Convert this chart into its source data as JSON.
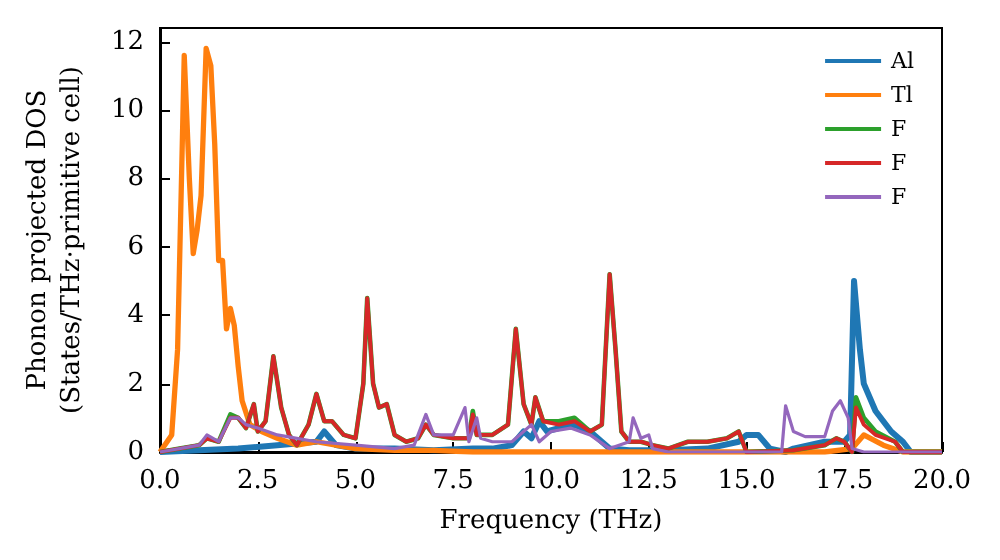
{
  "chart_data": {
    "type": "line",
    "xlabel": "Frequency (THz)",
    "ylabel": "Phonon projected DOS\n(States/THz·primitive cell)",
    "xlim": [
      0,
      20
    ],
    "ylim": [
      0,
      12.4
    ],
    "xticks": [
      {
        "value": 0,
        "label": "0.0"
      },
      {
        "value": 2.5,
        "label": "2.5"
      },
      {
        "value": 5,
        "label": "5.0"
      },
      {
        "value": 7.5,
        "label": "7.5"
      },
      {
        "value": 10,
        "label": "10.0"
      },
      {
        "value": 12.5,
        "label": "12.5"
      },
      {
        "value": 15,
        "label": "15.0"
      },
      {
        "value": 17.5,
        "label": "17.5"
      },
      {
        "value": 20,
        "label": "20.0"
      }
    ],
    "yticks": [
      0,
      2,
      4,
      6,
      8,
      10,
      12
    ],
    "grid": false,
    "legend": "top right",
    "marker": "none",
    "line_style": "solid",
    "series": [
      {
        "name": "Al",
        "color": "#1f77b4",
        "x": [
          0,
          1,
          2,
          3,
          4,
          4.2,
          4.5,
          5,
          6,
          7,
          8,
          8.5,
          9,
          9.3,
          9.5,
          9.7,
          9.9,
          10.2,
          10.6,
          11,
          11.3,
          11.5,
          12,
          13,
          14,
          14.8,
          15,
          15.3,
          15.6,
          16,
          16.2,
          17,
          17.5,
          17.65,
          17.75,
          17.9,
          18,
          18.3,
          18.7,
          19,
          19.2,
          20
        ],
        "values": [
          0,
          0.05,
          0.1,
          0.2,
          0.3,
          0.6,
          0.2,
          0.1,
          0.1,
          0.05,
          0.1,
          0.1,
          0.2,
          0.6,
          0.4,
          0.9,
          0.6,
          0.7,
          0.8,
          0.6,
          0.3,
          0.1,
          0.05,
          0.05,
          0.1,
          0.3,
          0.5,
          0.5,
          0.1,
          0,
          0.1,
          0.3,
          0.3,
          0.5,
          5.0,
          3.0,
          2.0,
          1.2,
          0.6,
          0.3,
          0,
          0
        ]
      },
      {
        "name": "Tl",
        "color": "#ff7f0e",
        "x": [
          0,
          0.3,
          0.45,
          0.55,
          0.62,
          0.75,
          0.85,
          0.95,
          1.05,
          1.18,
          1.3,
          1.4,
          1.5,
          1.6,
          1.7,
          1.8,
          1.9,
          2.0,
          2.1,
          2.3,
          2.6,
          3.0,
          3.5,
          4,
          4.5,
          5,
          6,
          7,
          8,
          17,
          17.7,
          18,
          18.5,
          19,
          20
        ],
        "values": [
          0,
          0.5,
          3,
          8,
          11.6,
          8,
          5.8,
          6.5,
          7.5,
          11.8,
          11.3,
          9,
          5.6,
          5.6,
          3.6,
          4.2,
          3.7,
          2.5,
          1.5,
          0.8,
          0.6,
          0.4,
          0.2,
          0.3,
          0.2,
          0.1,
          0.05,
          0.05,
          0,
          0,
          0.1,
          0.5,
          0.2,
          0,
          0
        ]
      },
      {
        "name": "F",
        "color": "#2ca02c",
        "x": [
          0,
          0.5,
          1.0,
          1.2,
          1.5,
          1.8,
          2.0,
          2.2,
          2.4,
          2.5,
          2.7,
          2.9,
          3.1,
          3.3,
          3.5,
          3.8,
          4.0,
          4.2,
          4.4,
          4.7,
          5.0,
          5.2,
          5.3,
          5.45,
          5.6,
          5.8,
          6.0,
          6.3,
          6.6,
          6.8,
          7.0,
          7.5,
          7.9,
          8.0,
          8.1,
          8.5,
          8.9,
          9.1,
          9.3,
          9.5,
          9.6,
          9.8,
          10.2,
          10.6,
          11.0,
          11.3,
          11.5,
          11.65,
          11.8,
          12.0,
          12.3,
          12.6,
          13.0,
          13.5,
          14,
          14.5,
          14.8,
          15.0,
          16.2,
          17,
          17.3,
          17.5,
          17.7,
          17.8,
          18.0,
          18.3,
          18.8,
          19,
          20
        ],
        "values": [
          0,
          0.1,
          0.2,
          0.4,
          0.3,
          1.1,
          1.0,
          0.7,
          1.4,
          0.6,
          0.9,
          2.8,
          1.3,
          0.5,
          0.2,
          0.8,
          1.7,
          0.9,
          0.9,
          0.5,
          0.4,
          2.0,
          4.5,
          2.0,
          1.3,
          1.4,
          0.5,
          0.3,
          0.4,
          0.8,
          0.5,
          0.4,
          0.4,
          1.2,
          0.5,
          0.5,
          0.8,
          3.6,
          1.4,
          0.8,
          1.6,
          0.9,
          0.9,
          1.0,
          0.6,
          0.8,
          5.2,
          3.0,
          0.6,
          0.3,
          0.3,
          0.2,
          0.1,
          0.3,
          0.3,
          0.4,
          0.6,
          0,
          0.05,
          0.2,
          0.4,
          0.3,
          0,
          1.6,
          1.0,
          0.6,
          0.3,
          0,
          0
        ]
      },
      {
        "name": "F",
        "color": "#d62728",
        "x": [
          0,
          0.5,
          1.0,
          1.2,
          1.5,
          1.8,
          2.0,
          2.2,
          2.4,
          2.5,
          2.7,
          2.9,
          3.1,
          3.3,
          3.5,
          3.8,
          4.0,
          4.2,
          4.4,
          4.7,
          5.0,
          5.2,
          5.3,
          5.45,
          5.6,
          5.8,
          6.0,
          6.3,
          6.6,
          6.8,
          7.0,
          7.5,
          7.9,
          8.0,
          8.1,
          8.5,
          8.9,
          9.1,
          9.3,
          9.5,
          9.6,
          9.8,
          10.2,
          10.6,
          11.0,
          11.3,
          11.5,
          11.65,
          11.8,
          12.0,
          12.3,
          12.6,
          13.0,
          13.5,
          14,
          14.5,
          14.8,
          15.0,
          16.2,
          17,
          17.3,
          17.5,
          17.7,
          17.8,
          18.0,
          18.3,
          18.8,
          19,
          20
        ],
        "values": [
          0,
          0.1,
          0.2,
          0.4,
          0.3,
          1.0,
          1.0,
          0.7,
          1.4,
          0.6,
          0.9,
          2.8,
          1.3,
          0.5,
          0.2,
          0.8,
          1.7,
          0.9,
          0.9,
          0.5,
          0.4,
          2.0,
          4.5,
          2.0,
          1.3,
          1.4,
          0.5,
          0.3,
          0.4,
          0.8,
          0.5,
          0.4,
          0.4,
          1.1,
          0.5,
          0.5,
          0.8,
          3.6,
          1.4,
          0.8,
          1.6,
          0.9,
          0.8,
          0.9,
          0.6,
          0.8,
          5.2,
          3.0,
          0.6,
          0.3,
          0.3,
          0.2,
          0.1,
          0.3,
          0.3,
          0.4,
          0.6,
          0,
          0.05,
          0.2,
          0.4,
          0.3,
          0,
          1.3,
          0.8,
          0.5,
          0.3,
          0,
          0
        ]
      },
      {
        "name": "F",
        "color": "#9467bd",
        "x": [
          0,
          1,
          1.2,
          1.5,
          1.8,
          2,
          2.2,
          2.5,
          3,
          4,
          5,
          6,
          6.5,
          6.8,
          7,
          7.5,
          7.8,
          7.9,
          8.1,
          8.2,
          8.5,
          9,
          9.5,
          9.7,
          10,
          10.5,
          11,
          11.5,
          12,
          12.1,
          12.3,
          12.5,
          12.6,
          13,
          15.9,
          16.0,
          16.2,
          16.5,
          17.0,
          17.2,
          17.4,
          17.6,
          17.7,
          18,
          20
        ],
        "values": [
          0,
          0.2,
          0.5,
          0.3,
          1.0,
          1.0,
          0.8,
          0.7,
          0.5,
          0.3,
          0.2,
          0.1,
          0.2,
          1.1,
          0.5,
          0.5,
          1.3,
          0.3,
          1.0,
          0.4,
          0.3,
          0.3,
          0.8,
          0.3,
          0.6,
          0.7,
          0.5,
          0.1,
          0.3,
          1.0,
          0.4,
          0.5,
          0.1,
          0,
          0,
          1.35,
          0.6,
          0.45,
          0.45,
          1.2,
          1.5,
          1.0,
          0.1,
          0,
          0
        ]
      }
    ]
  }
}
